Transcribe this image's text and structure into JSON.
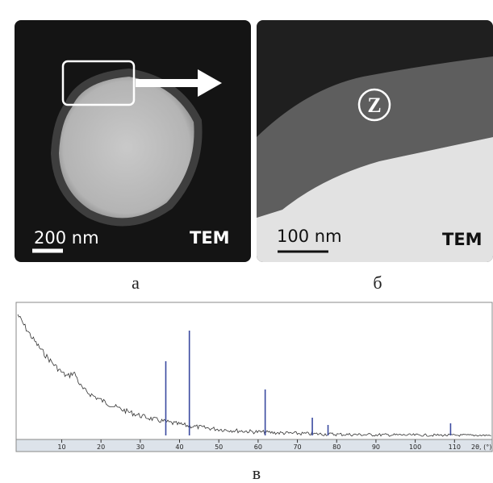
{
  "panels": [
    {
      "scale_bar": "200 nm",
      "method": "TEM",
      "label": "а"
    },
    {
      "scale_bar": "100 nm",
      "method": "TEM",
      "marker": "Z",
      "label": "б"
    }
  ],
  "chart_data": {
    "type": "stick",
    "label": "в",
    "x_label": "2θ, (°)",
    "x": [
      36.5,
      42.5,
      61.8,
      73.8,
      77.8,
      109
    ],
    "values": [
      92,
      130,
      57,
      22,
      13,
      15
    ],
    "color": "#3a4aa0",
    "xlim": [
      -1.6,
      119.8
    ],
    "ylim": [
      0,
      140
    ],
    "xticks": [
      10,
      20,
      30,
      40,
      50,
      60,
      70,
      80,
      90,
      100,
      110
    ]
  }
}
